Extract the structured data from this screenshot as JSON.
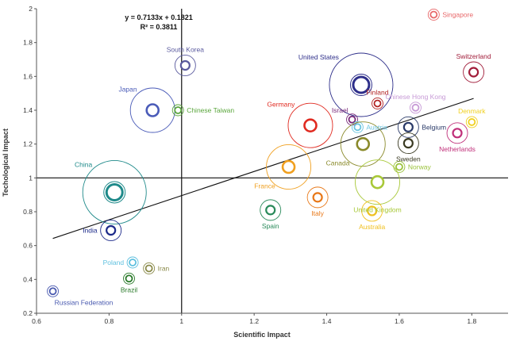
{
  "chart_data": {
    "type": "scatter",
    "title": "",
    "xlabel": "Scientific Impact",
    "ylabel": "Techological Impact",
    "xlim": [
      0.6,
      1.9
    ],
    "ylim": [
      0.2,
      2.0
    ],
    "xticks": [
      "0.6",
      "0.8",
      "1",
      "1.2",
      "1.4",
      "1.6",
      "1.8"
    ],
    "yticks": [
      "0.2",
      "0.4",
      "0.6",
      "0.8",
      "1",
      "1.2",
      "1.4",
      "1.6",
      "1.8",
      "2"
    ],
    "reference_lines": {
      "x": 1,
      "y": 1
    },
    "trendline": {
      "equation": "y = 0.7133x + 0.1821",
      "r2_label": "R² = 0.3811",
      "slope": 0.7133,
      "intercept": 0.1821,
      "x_range": [
        0.645,
        1.805
      ]
    },
    "points": [
      {
        "label": "Singapore",
        "x": 1.695,
        "y": 1.965,
        "size": "small",
        "color": "#e8686a",
        "label_pos": "right"
      },
      {
        "label": "Switzerland",
        "x": 1.805,
        "y": 1.625,
        "size": "medium",
        "color": "#a11d3a",
        "label_pos": "above"
      },
      {
        "label": "United States",
        "x": 1.495,
        "y": 1.55,
        "size": "xlarge",
        "color": "#2e2f8a",
        "label_pos": "above-left"
      },
      {
        "label": "South Korea",
        "x": 1.01,
        "y": 1.665,
        "size": "medium",
        "color": "#5a5a9e",
        "label_pos": "above"
      },
      {
        "label": "Japan",
        "x": 0.92,
        "y": 1.4,
        "size": "large",
        "color": "#4a5bb8",
        "label_pos": "above-left"
      },
      {
        "label": "Chinese Taiwan",
        "x": 0.99,
        "y": 1.4,
        "size": "small",
        "color": "#5aa63c",
        "label_pos": "right"
      },
      {
        "label": "Finland",
        "x": 1.54,
        "y": 1.44,
        "size": "small",
        "color": "#b22222",
        "label_pos": "above"
      },
      {
        "label": "Chinese Hong Kong",
        "x": 1.645,
        "y": 1.415,
        "size": "small",
        "color": "#c79ad6",
        "label_pos": "above"
      },
      {
        "label": "Denmark",
        "x": 1.8,
        "y": 1.33,
        "size": "small",
        "color": "#f0d020",
        "label_pos": "above"
      },
      {
        "label": "Germany",
        "x": 1.355,
        "y": 1.31,
        "size": "large",
        "color": "#e02a20",
        "label_pos": "above-left"
      },
      {
        "label": "Israel",
        "x": 1.47,
        "y": 1.345,
        "size": "small",
        "color": "#7a2a7a",
        "label_pos": "above-left"
      },
      {
        "label": "Austria",
        "x": 1.485,
        "y": 1.3,
        "size": "small",
        "color": "#6ac4df",
        "label_pos": "right"
      },
      {
        "label": "Belgium",
        "x": 1.625,
        "y": 1.3,
        "size": "medium",
        "color": "#2a3a68",
        "label_pos": "right"
      },
      {
        "label": "Netherlands",
        "x": 1.76,
        "y": 1.265,
        "size": "medium",
        "color": "#c0307a",
        "label_pos": "below"
      },
      {
        "label": "Sweden",
        "x": 1.625,
        "y": 1.205,
        "size": "medium",
        "color": "#3a3a22",
        "label_pos": "below"
      },
      {
        "label": "Canada",
        "x": 1.5,
        "y": 1.2,
        "size": "large",
        "color": "#8a8a2a",
        "label_pos": "below-left"
      },
      {
        "label": "Norway",
        "x": 1.6,
        "y": 1.065,
        "size": "small",
        "color": "#9ac23a",
        "label_pos": "right"
      },
      {
        "label": "France",
        "x": 1.295,
        "y": 1.065,
        "size": "large",
        "color": "#f0a020",
        "label_pos": "below-left"
      },
      {
        "label": "United Kingdom",
        "x": 1.54,
        "y": 0.975,
        "size": "large",
        "color": "#a8c838",
        "label_pos": "below"
      },
      {
        "label": "China",
        "x": 0.815,
        "y": 0.915,
        "size": "xlarge",
        "color": "#1f8a8a",
        "label_pos": "above-left"
      },
      {
        "label": "Italy",
        "x": 1.375,
        "y": 0.885,
        "size": "medium",
        "color": "#e87818",
        "label_pos": "below"
      },
      {
        "label": "Spain",
        "x": 1.245,
        "y": 0.81,
        "size": "medium",
        "color": "#2a8a5a",
        "label_pos": "below"
      },
      {
        "label": "Australia",
        "x": 1.525,
        "y": 0.805,
        "size": "medium",
        "color": "#f0c020",
        "label_pos": "below"
      },
      {
        "label": "India",
        "x": 0.805,
        "y": 0.69,
        "size": "medium",
        "color": "#1c2a8a",
        "label_pos": "left"
      },
      {
        "label": "Poland",
        "x": 0.865,
        "y": 0.5,
        "size": "small",
        "color": "#5ec0df",
        "label_pos": "left"
      },
      {
        "label": "Iran",
        "x": 0.91,
        "y": 0.465,
        "size": "small",
        "color": "#8a8a4a",
        "label_pos": "right"
      },
      {
        "label": "Brazil",
        "x": 0.855,
        "y": 0.405,
        "size": "small",
        "color": "#2a7a2a",
        "label_pos": "below"
      },
      {
        "label": "Russian Federation",
        "x": 0.645,
        "y": 0.33,
        "size": "small",
        "color": "#4a5ab0",
        "label_pos": "below-right"
      }
    ]
  }
}
